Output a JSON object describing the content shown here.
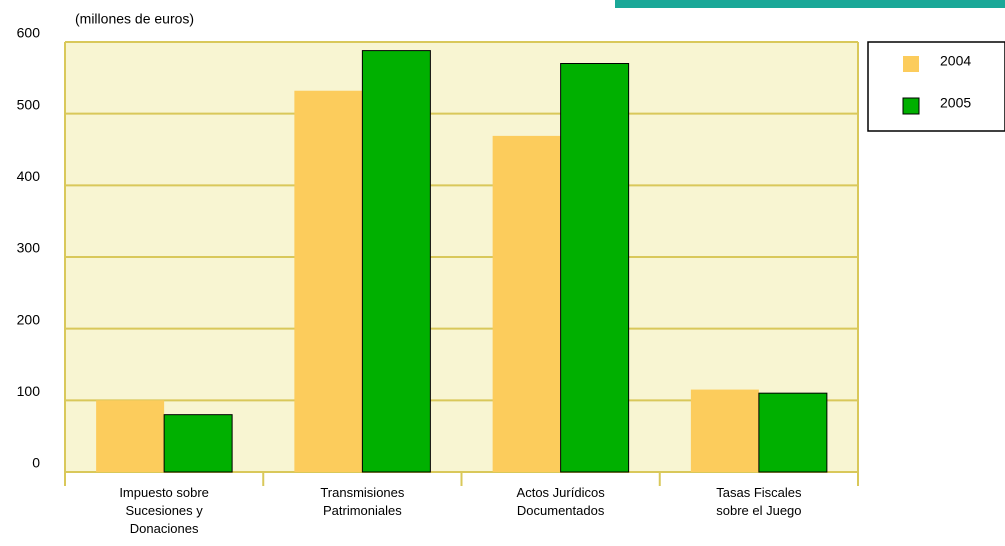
{
  "chart_data": {
    "type": "bar",
    "subtitle": "(millones de euros)",
    "categories": [
      "Impuesto sobre\nSucesiones y\nDonaciones",
      "Transmisiones\nPatrimoniales",
      "Actos Jurídicos\nDocumentados",
      "Tasas Fiscales\nsobre el Juego"
    ],
    "series": [
      {
        "name": "2004",
        "color": "#fccc5c",
        "values": [
          100,
          532,
          469,
          115
        ]
      },
      {
        "name": "2005",
        "color": "#00b000",
        "values": [
          80,
          588,
          570,
          110
        ]
      }
    ],
    "ylim": [
      0,
      600
    ],
    "yticks": [
      0,
      100,
      200,
      300,
      400,
      500,
      600
    ],
    "grid": true,
    "legend": "top-right"
  }
}
